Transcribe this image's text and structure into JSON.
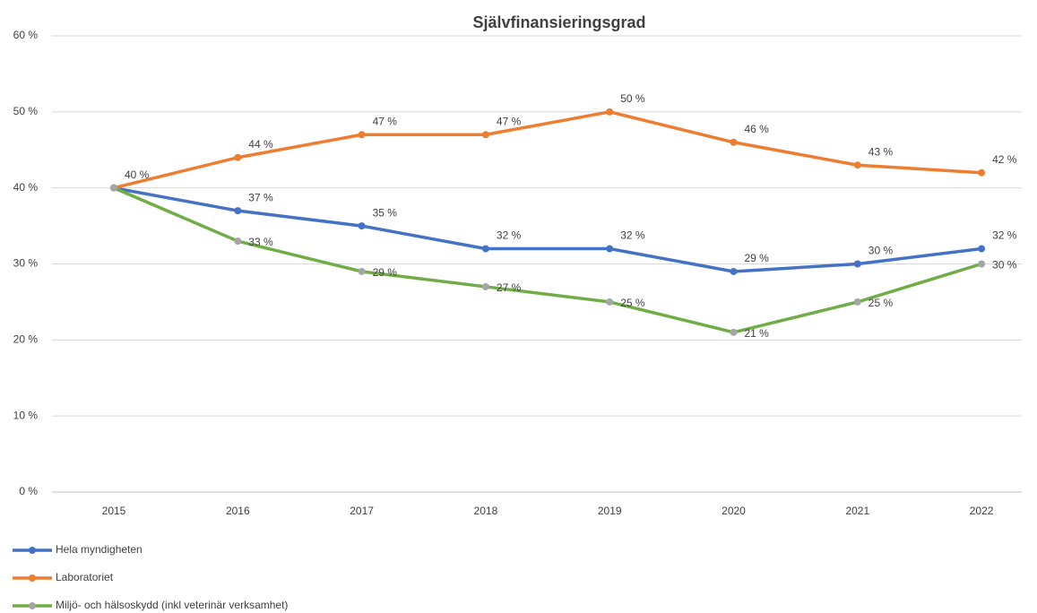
{
  "chart_data": {
    "type": "line",
    "title": "Självfinansieringsgrad",
    "categories": [
      "2015",
      "2016",
      "2017",
      "2018",
      "2019",
      "2020",
      "2021",
      "2022"
    ],
    "series": [
      {
        "name": "Hela myndigheten",
        "color": "#4472c4",
        "marker_color": "#4472c4",
        "values": [
          40,
          37,
          35,
          32,
          32,
          29,
          30,
          32
        ],
        "value_labels": [
          "40 %",
          "37 %",
          "35 %",
          "32 %",
          "32 %",
          "29 %",
          "30 %",
          "32 %"
        ]
      },
      {
        "name": "Laboratoriet",
        "color": "#ed7d31",
        "marker_color": "#ed7d31",
        "values": [
          40,
          44,
          47,
          47,
          50,
          46,
          43,
          42
        ],
        "value_labels": [
          null,
          "44 %",
          "47 %",
          "47 %",
          "50 %",
          "46 %",
          "43 %",
          "42 %"
        ]
      },
      {
        "name": "Miljö- och hälsoskydd (inkl veterinär verksamhet)",
        "color": "#70ad47",
        "marker_color": "#a5a5a5",
        "values": [
          40,
          33,
          29,
          27,
          25,
          21,
          25,
          30
        ],
        "value_labels": [
          null,
          "33 %",
          "29 %",
          "27 %",
          "25 %",
          "21 %",
          "25 %",
          "30 %"
        ]
      }
    ],
    "ylim": [
      0,
      60
    ],
    "yticks": [
      {
        "value": 0,
        "label": "0 %"
      },
      {
        "value": 10,
        "label": "10 %"
      },
      {
        "value": 20,
        "label": "20 %"
      },
      {
        "value": 30,
        "label": "30 %"
      },
      {
        "value": 40,
        "label": "40 %"
      },
      {
        "value": 50,
        "label": "50 %"
      },
      {
        "value": 60,
        "label": "60 %"
      }
    ],
    "grid": true,
    "legend": "bottom-left"
  }
}
